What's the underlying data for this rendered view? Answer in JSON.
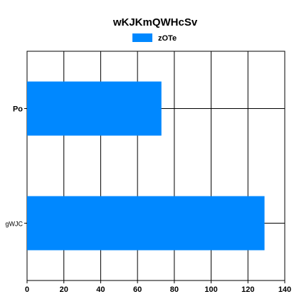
{
  "chart_data": {
    "type": "bar",
    "orientation": "horizontal",
    "title": "wKJKmQWHcSv",
    "xlabel": "",
    "ylabel": "",
    "categories": [
      "Po",
      "gWJC"
    ],
    "series": [
      {
        "name": "zOTe",
        "values": [
          73,
          129
        ],
        "color": "#0088ff"
      }
    ],
    "xlim": [
      0,
      140
    ],
    "x_ticks": [
      0,
      20,
      40,
      60,
      80,
      100,
      120,
      140
    ],
    "grid": true,
    "legend_position": "top-center"
  }
}
